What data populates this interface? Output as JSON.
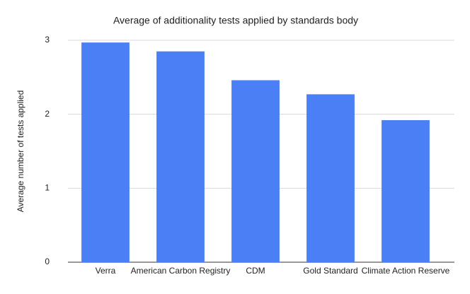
{
  "chart_data": {
    "type": "bar",
    "title": "Average of additionality tests applied by standards body",
    "y_label": "Average number of tests applied",
    "categories": [
      "Verra",
      "American Carbon Registry",
      "CDM",
      "Gold Standard",
      "Climate Action Reserve"
    ],
    "values": [
      2.97,
      2.85,
      2.46,
      2.27,
      1.92
    ],
    "color": "#4a7ff5",
    "ylim": [
      0,
      3
    ],
    "yticks": [
      0,
      1,
      2,
      3
    ],
    "grid": true
  }
}
